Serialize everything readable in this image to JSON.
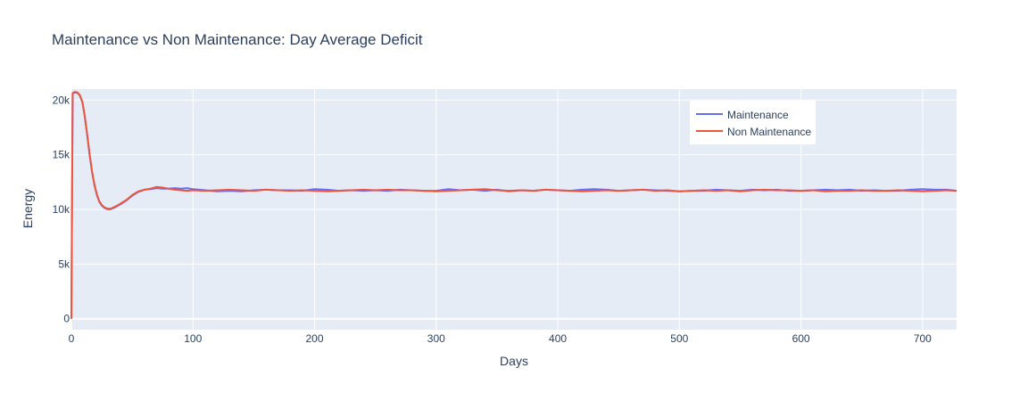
{
  "chart_data": {
    "type": "line",
    "title": "Maintenance vs Non Maintenance: Day Average Deficit",
    "xlabel": "Days",
    "ylabel": "Energy",
    "xlim": [
      0,
      728
    ],
    "ylim": [
      -1000,
      21000
    ],
    "x_ticks": [
      0,
      100,
      200,
      300,
      400,
      500,
      600,
      700
    ],
    "x_tick_labels": [
      "0",
      "100",
      "200",
      "300",
      "400",
      "500",
      "600",
      "700"
    ],
    "y_ticks": [
      0,
      5000,
      10000,
      15000,
      20000
    ],
    "y_tick_labels": [
      "0",
      "5k",
      "10k",
      "15k",
      "20k"
    ],
    "grid": true,
    "legend_position": "top-right",
    "series": [
      {
        "name": "Maintenance",
        "color": "#636efa",
        "x": [
          0,
          1,
          3,
          5,
          7,
          9,
          11,
          13,
          15,
          17,
          19,
          21,
          23,
          25,
          27,
          29,
          31,
          33,
          36,
          40,
          45,
          50,
          55,
          60,
          65,
          70,
          75,
          80,
          85,
          90,
          95,
          100,
          110,
          120,
          130,
          140,
          150,
          160,
          170,
          180,
          190,
          200,
          210,
          220,
          230,
          240,
          250,
          260,
          270,
          280,
          290,
          300,
          310,
          320,
          330,
          340,
          350,
          360,
          370,
          380,
          390,
          400,
          410,
          420,
          430,
          440,
          450,
          460,
          470,
          480,
          490,
          500,
          510,
          520,
          530,
          540,
          550,
          560,
          570,
          580,
          590,
          600,
          610,
          620,
          630,
          640,
          650,
          660,
          670,
          680,
          690,
          700,
          710,
          720,
          728
        ],
        "y": [
          0,
          20600,
          20700,
          20650,
          20400,
          19800,
          18500,
          16800,
          15000,
          13400,
          12200,
          11300,
          10700,
          10350,
          10150,
          10050,
          10000,
          10050,
          10200,
          10450,
          10800,
          11250,
          11600,
          11800,
          11850,
          11950,
          11900,
          11900,
          11950,
          11900,
          11950,
          11850,
          11750,
          11650,
          11700,
          11650,
          11750,
          11800,
          11750,
          11750,
          11700,
          11850,
          11800,
          11700,
          11750,
          11700,
          11750,
          11700,
          11800,
          11750,
          11700,
          11700,
          11850,
          11750,
          11800,
          11700,
          11800,
          11650,
          11750,
          11700,
          11800,
          11750,
          11700,
          11800,
          11850,
          11800,
          11700,
          11750,
          11800,
          11750,
          11700,
          11650,
          11700,
          11700,
          11800,
          11750,
          11700,
          11800,
          11750,
          11800,
          11700,
          11700,
          11750,
          11800,
          11750,
          11800,
          11700,
          11750,
          11700,
          11700,
          11800,
          11850,
          11800,
          11800,
          11700
        ]
      },
      {
        "name": "Non Maintenance",
        "color": "#ef553b",
        "x": [
          0,
          1,
          3,
          5,
          7,
          9,
          11,
          13,
          15,
          17,
          19,
          21,
          23,
          25,
          27,
          29,
          31,
          33,
          36,
          40,
          45,
          50,
          55,
          60,
          65,
          70,
          75,
          80,
          85,
          90,
          95,
          100,
          110,
          120,
          130,
          140,
          150,
          160,
          170,
          180,
          190,
          200,
          210,
          220,
          230,
          240,
          250,
          260,
          270,
          280,
          290,
          300,
          310,
          320,
          330,
          340,
          350,
          360,
          370,
          380,
          390,
          400,
          410,
          420,
          430,
          440,
          450,
          460,
          470,
          480,
          490,
          500,
          510,
          520,
          530,
          540,
          550,
          560,
          570,
          580,
          590,
          600,
          610,
          620,
          630,
          640,
          650,
          660,
          670,
          680,
          690,
          700,
          710,
          720,
          728
        ],
        "y": [
          0,
          20650,
          20750,
          20700,
          20450,
          19850,
          18550,
          16850,
          15050,
          13450,
          12250,
          11350,
          10750,
          10400,
          10200,
          10100,
          10050,
          10100,
          10250,
          10500,
          10850,
          11300,
          11650,
          11800,
          11900,
          12050,
          12000,
          11900,
          11800,
          11750,
          11700,
          11750,
          11700,
          11750,
          11800,
          11750,
          11700,
          11800,
          11750,
          11700,
          11750,
          11700,
          11650,
          11700,
          11750,
          11800,
          11750,
          11800,
          11750,
          11750,
          11700,
          11650,
          11700,
          11750,
          11800,
          11850,
          11750,
          11700,
          11750,
          11700,
          11800,
          11750,
          11700,
          11650,
          11700,
          11750,
          11700,
          11750,
          11800,
          11700,
          11750,
          11650,
          11700,
          11750,
          11700,
          11750,
          11650,
          11750,
          11800,
          11750,
          11750,
          11700,
          11750,
          11650,
          11700,
          11700,
          11750,
          11700,
          11700,
          11750,
          11700,
          11650,
          11700,
          11750,
          11700
        ]
      }
    ]
  }
}
